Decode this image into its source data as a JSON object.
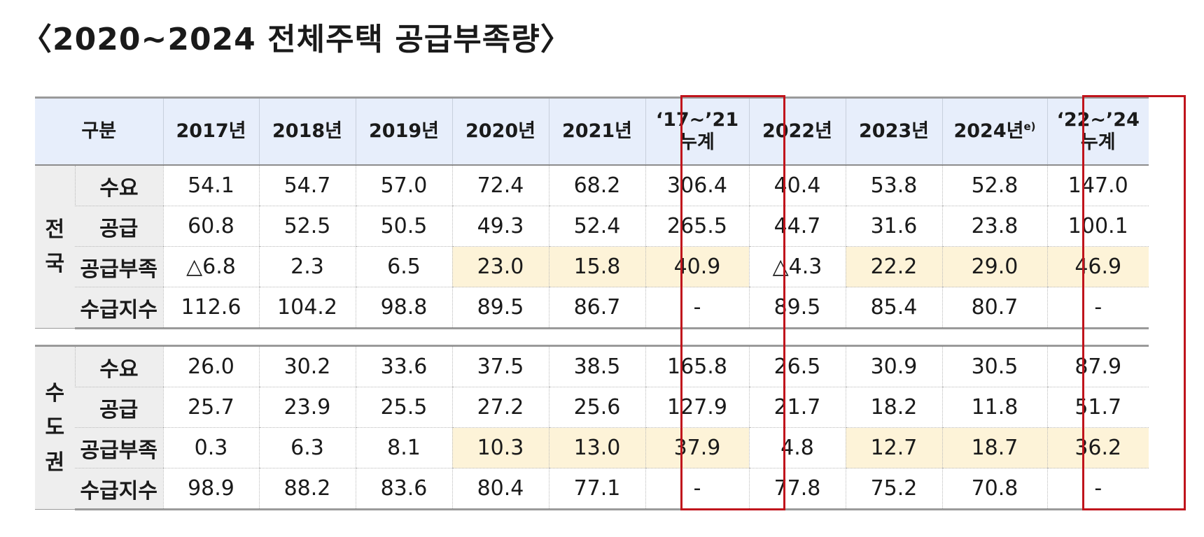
{
  "title": "〈2020~2024 전체주택 공급부족량〉",
  "colors": {
    "header_bg": "#e7eefb",
    "label_bg": "#eeeeee",
    "highlight_bg": "#fdf3d8",
    "frame": "#c0141c"
  },
  "table": {
    "header": {
      "category": "구분",
      "y2017": "2017년",
      "y2018": "2018년",
      "y2019": "2019년",
      "y2020": "2020년",
      "y2021": "2021년",
      "cum1_line1": "‘17~’21",
      "cum1_line2": "누계",
      "y2022": "2022년",
      "y2023": "2023년",
      "y2024": "2024년",
      "y2024_note": "e)",
      "cum2_line1": "‘22~’24",
      "cum2_line2": "누계"
    },
    "groups": [
      {
        "label": "전\n국",
        "rows": [
          {
            "label": "수요",
            "values": [
              "54.1",
              "54.7",
              "57.0",
              "72.4",
              "68.2",
              "306.4",
              "40.4",
              "53.8",
              "52.8",
              "147.0"
            ]
          },
          {
            "label": "공급",
            "values": [
              "60.8",
              "52.5",
              "50.5",
              "49.3",
              "52.4",
              "265.5",
              "44.7",
              "31.6",
              "23.8",
              "100.1"
            ]
          },
          {
            "label": "공급부족",
            "values": [
              "△6.8",
              "2.3",
              "6.5",
              "23.0",
              "15.8",
              "40.9",
              "△4.3",
              "22.2",
              "29.0",
              "46.9"
            ]
          },
          {
            "label": "수급지수",
            "values": [
              "112.6",
              "104.2",
              "98.8",
              "89.5",
              "86.7",
              "-",
              "89.5",
              "85.4",
              "80.7",
              "-"
            ]
          }
        ]
      },
      {
        "label": "수\n도\n권",
        "rows": [
          {
            "label": "수요",
            "values": [
              "26.0",
              "30.2",
              "33.6",
              "37.5",
              "38.5",
              "165.8",
              "26.5",
              "30.9",
              "30.5",
              "87.9"
            ]
          },
          {
            "label": "공급",
            "values": [
              "25.7",
              "23.9",
              "25.5",
              "27.2",
              "25.6",
              "127.9",
              "21.7",
              "18.2",
              "11.8",
              "51.7"
            ]
          },
          {
            "label": "공급부족",
            "values": [
              "0.3",
              "6.3",
              "8.1",
              "10.3",
              "13.0",
              "37.9",
              "4.8",
              "12.7",
              "18.7",
              "36.2"
            ]
          },
          {
            "label": "수급지수",
            "values": [
              "98.9",
              "88.2",
              "83.6",
              "80.4",
              "77.1",
              "-",
              "77.8",
              "75.2",
              "70.8",
              "-"
            ]
          }
        ]
      }
    ]
  }
}
